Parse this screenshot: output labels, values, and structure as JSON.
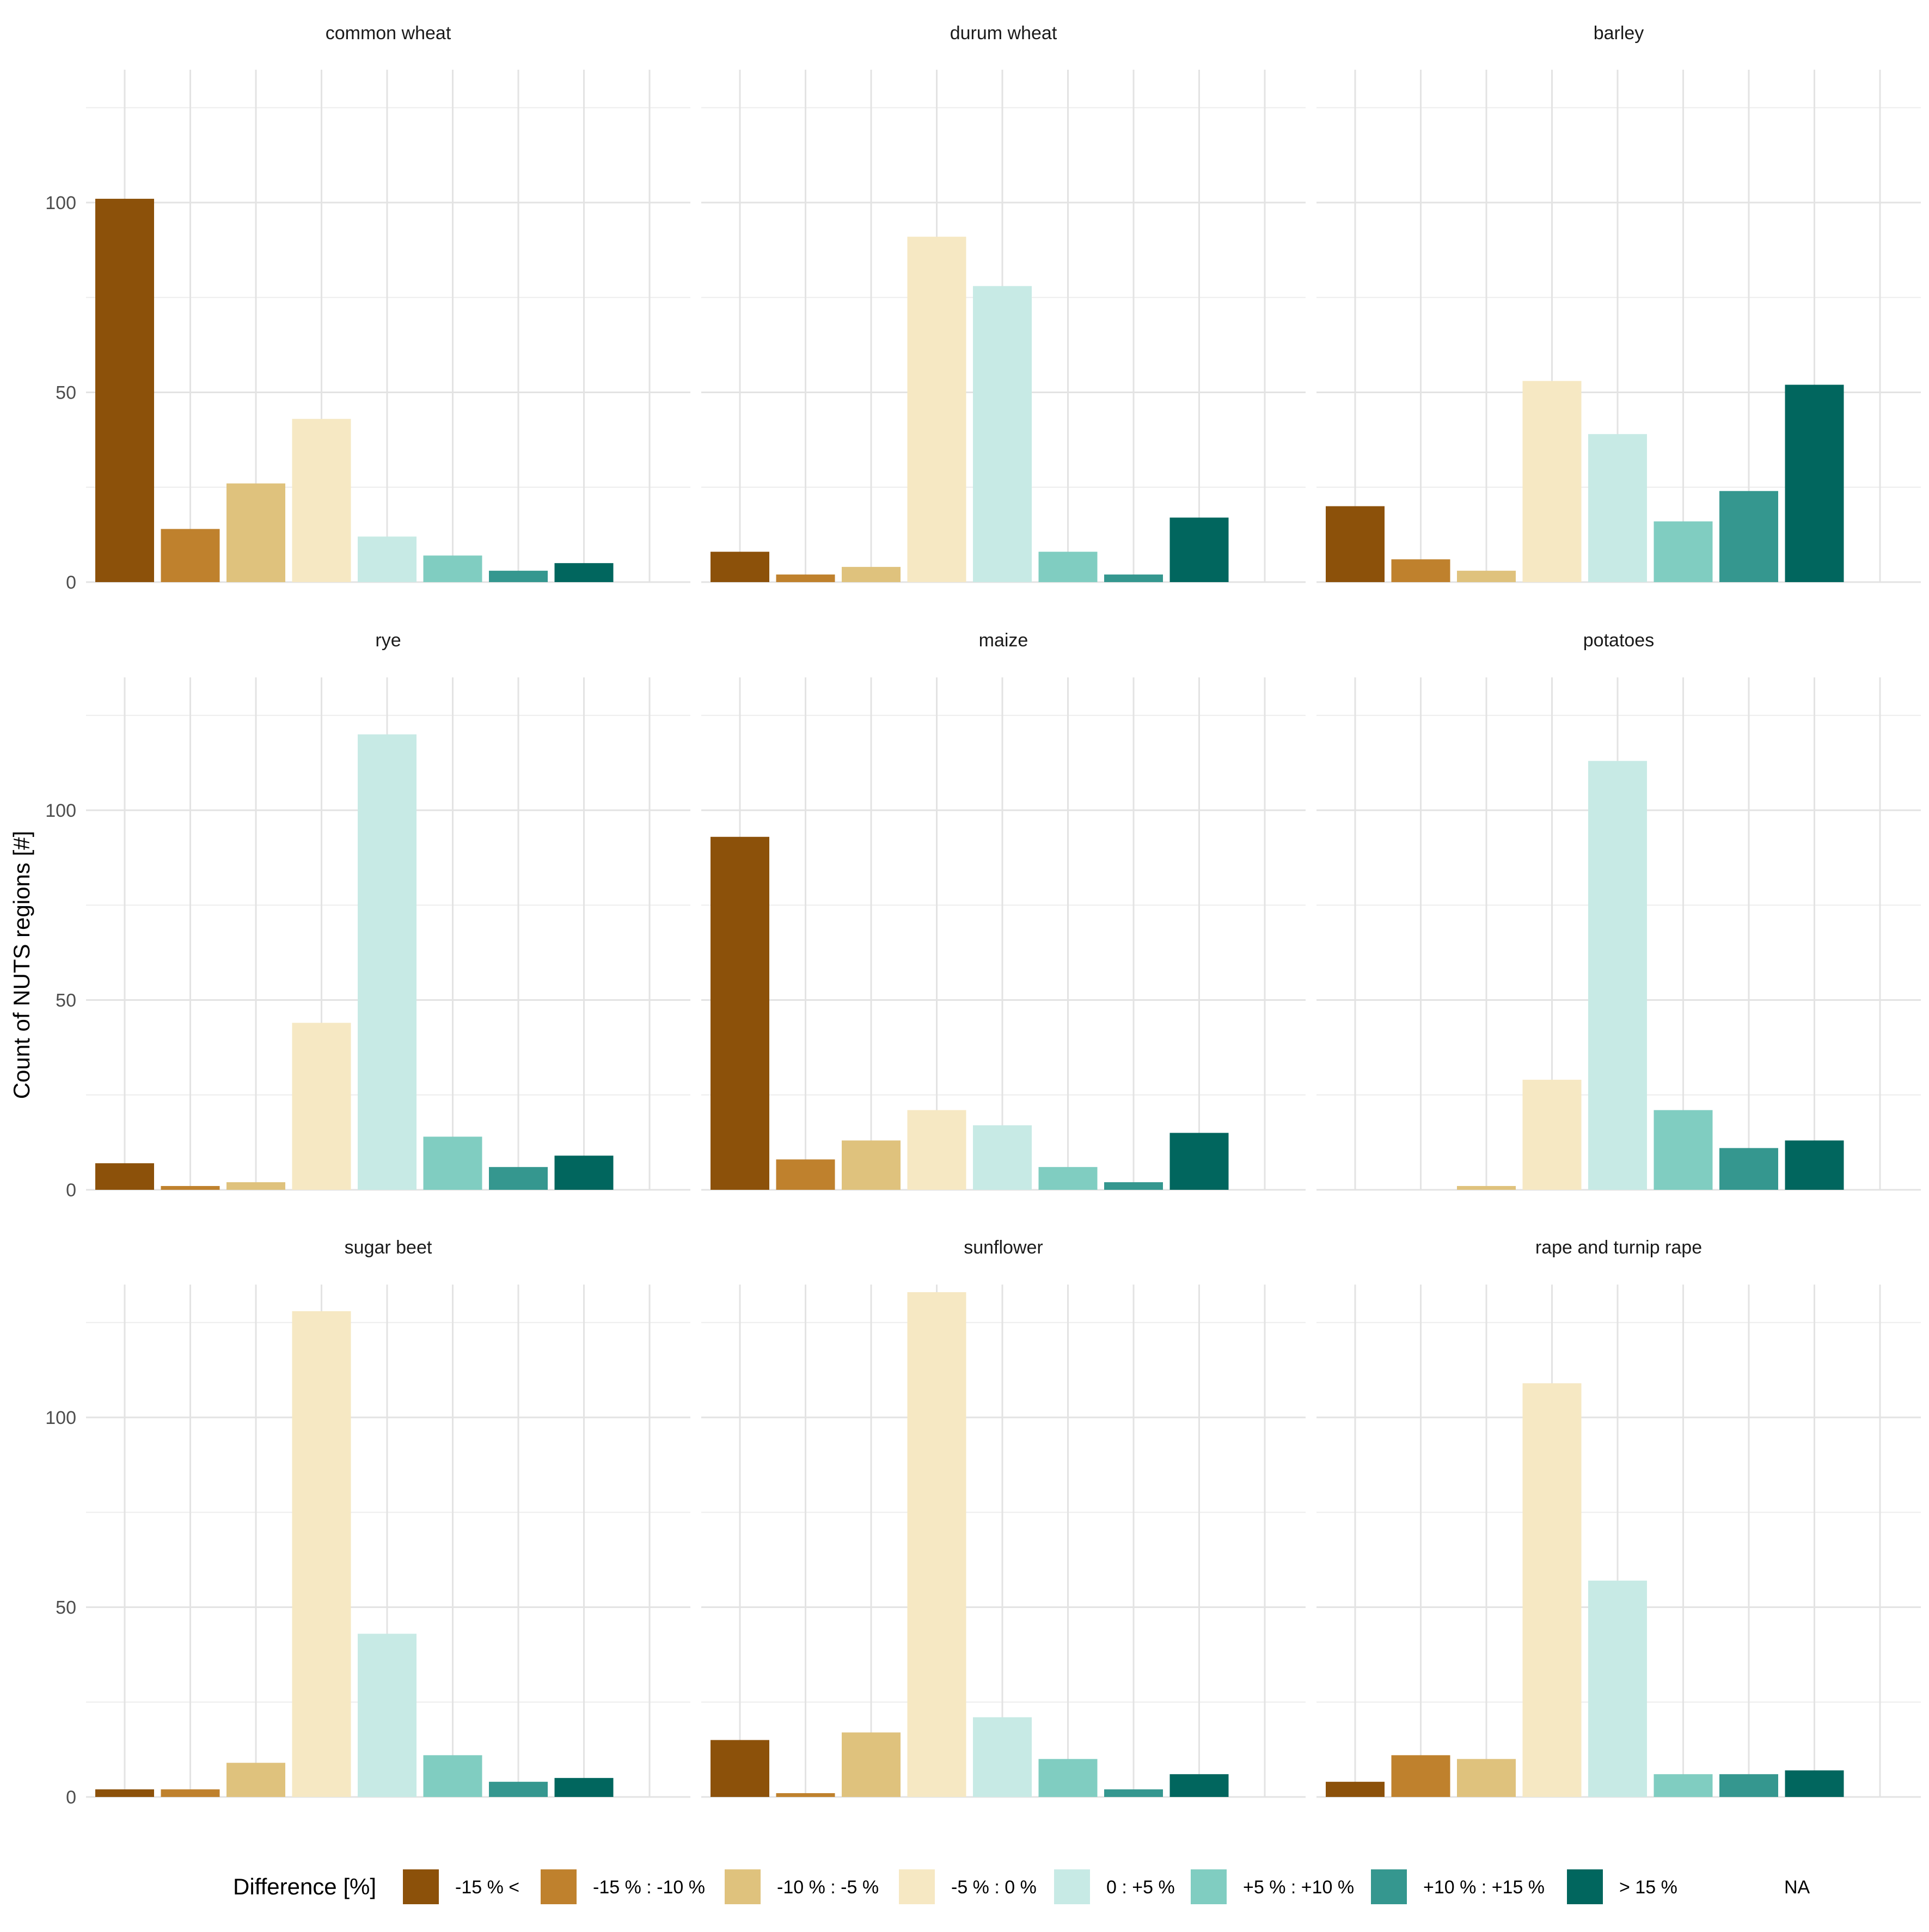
{
  "chart_data": {
    "type": "bar",
    "facet_layout": "3x3",
    "ylabel": "Count of NUTS regions [#]",
    "ylim": [
      0,
      135
    ],
    "yticks": [
      0,
      50,
      100
    ],
    "grid": true,
    "legend": {
      "title": "Difference [%]",
      "placement": "bottom",
      "entries": [
        {
          "label": "-15 % <",
          "color": "#8c510a"
        },
        {
          "label": "-15 % : -10 %",
          "color": "#bf812d"
        },
        {
          "label": "-10 % : -5 %",
          "color": "#dfc27d"
        },
        {
          "label": "-5 % : 0 %",
          "color": "#f6e8c3"
        },
        {
          "label": "0 : +5 %",
          "color": "#c7eae5"
        },
        {
          "label": "+5 % : +10 %",
          "color": "#80cdc1"
        },
        {
          "label": "+10 % : +15 %",
          "color": "#35978f"
        },
        {
          "label": "> 15 %",
          "color": "#01665e"
        },
        {
          "label": "NA",
          "color": ""
        }
      ]
    },
    "panels": [
      {
        "title": "common wheat",
        "values": [
          101,
          14,
          26,
          43,
          12,
          7,
          3,
          5,
          0
        ]
      },
      {
        "title": "durum wheat",
        "values": [
          8,
          2,
          4,
          91,
          78,
          8,
          2,
          17,
          0
        ]
      },
      {
        "title": "barley",
        "values": [
          20,
          6,
          3,
          53,
          39,
          16,
          24,
          52,
          0
        ]
      },
      {
        "title": "rye",
        "values": [
          7,
          1,
          2,
          44,
          120,
          14,
          6,
          9,
          0
        ]
      },
      {
        "title": "maize",
        "values": [
          93,
          8,
          13,
          21,
          17,
          6,
          2,
          15,
          0
        ]
      },
      {
        "title": "potatoes",
        "values": [
          0,
          0,
          1,
          29,
          113,
          21,
          11,
          13,
          0
        ]
      },
      {
        "title": "sugar beet",
        "values": [
          2,
          2,
          9,
          128,
          43,
          11,
          4,
          5,
          0
        ]
      },
      {
        "title": "sunflower",
        "values": [
          15,
          1,
          17,
          133,
          21,
          10,
          2,
          6,
          0
        ]
      },
      {
        "title": "rape and turnip rape",
        "values": [
          4,
          11,
          10,
          109,
          57,
          6,
          6,
          7,
          0
        ]
      }
    ]
  }
}
